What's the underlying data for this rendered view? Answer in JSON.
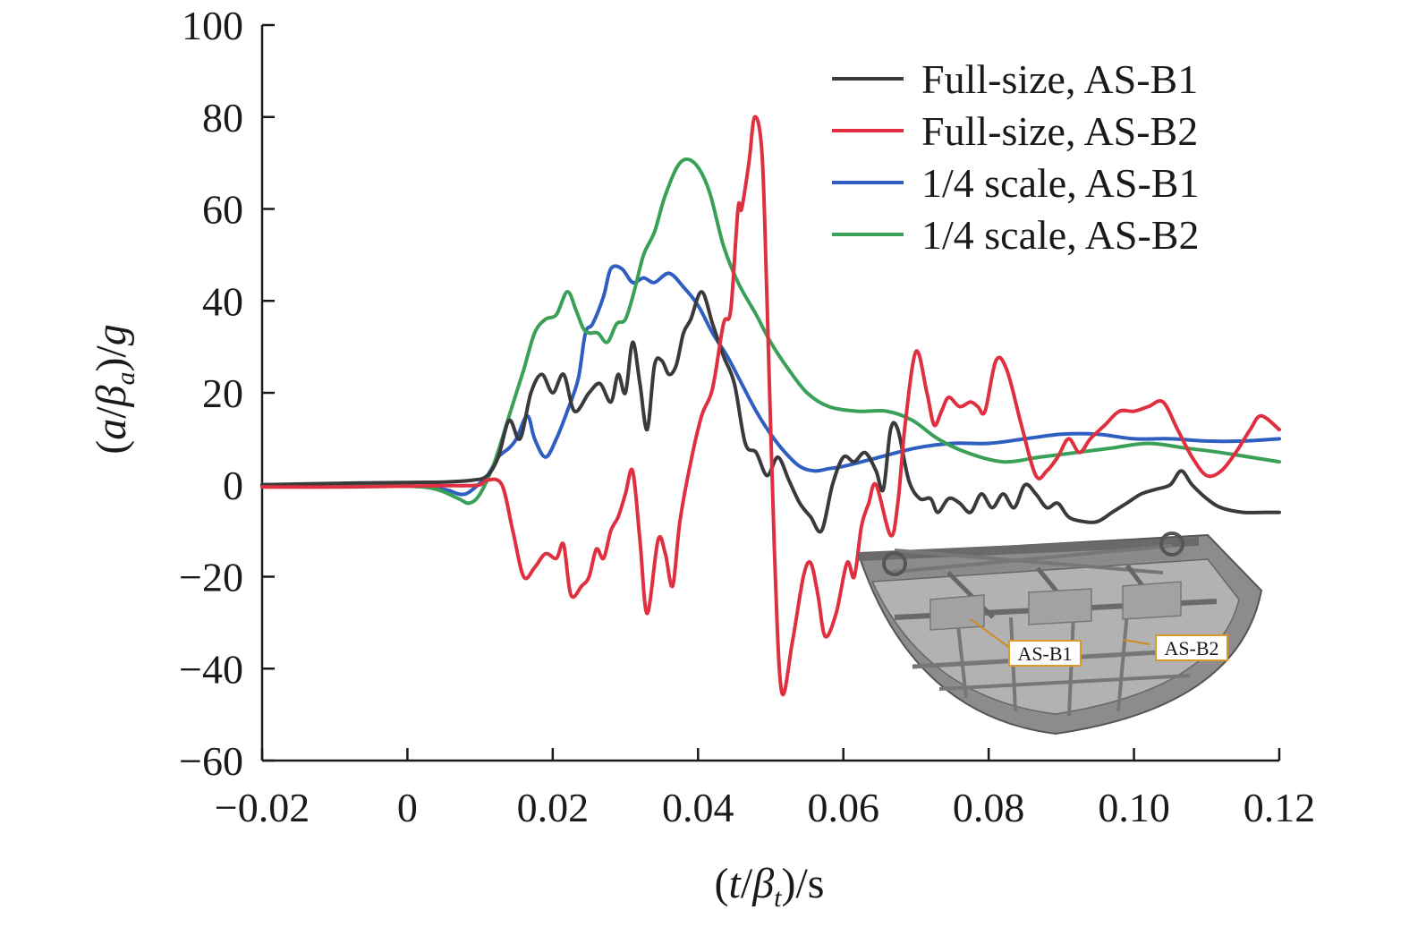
{
  "chart_data": {
    "type": "line",
    "xlabel": {
      "prefix": "(",
      "var": "t",
      "slash": "/",
      "greek": "β",
      "sub": "t",
      "suffix": ")/s"
    },
    "ylabel": {
      "prefix": "(",
      "var": "a",
      "slash": "/",
      "greek": "β",
      "sub": "a",
      "suffix": ")/",
      "unit": "g"
    },
    "xlim": [
      -0.02,
      0.12
    ],
    "ylim": [
      -60,
      100
    ],
    "xticks": [
      -0.02,
      0,
      0.02,
      0.04,
      0.06,
      0.08,
      0.1,
      0.12
    ],
    "xtick_labels": [
      "−0.02",
      "0",
      "0.02",
      "0.04",
      "0.06",
      "0.08",
      "0.10",
      "0.12"
    ],
    "yticks": [
      -60,
      -40,
      -20,
      0,
      20,
      40,
      60,
      80,
      100
    ],
    "ytick_labels": [
      "−60",
      "−40",
      "−20",
      "0",
      "20",
      "40",
      "60",
      "80",
      "100"
    ],
    "legend_position": "top-right",
    "grid": false,
    "series": [
      {
        "name": "Full-size, AS-B1",
        "color": "#3a3a3c",
        "points": [
          [
            -0.02,
            0
          ],
          [
            -0.01,
            0.3
          ],
          [
            0,
            0.5
          ],
          [
            0.005,
            0.6
          ],
          [
            0.009,
            1
          ],
          [
            0.011,
            2
          ],
          [
            0.0125,
            6
          ],
          [
            0.014,
            14
          ],
          [
            0.0155,
            10
          ],
          [
            0.017,
            20
          ],
          [
            0.0185,
            24
          ],
          [
            0.02,
            20
          ],
          [
            0.0215,
            24
          ],
          [
            0.023,
            16
          ],
          [
            0.025,
            20
          ],
          [
            0.0265,
            22
          ],
          [
            0.028,
            18
          ],
          [
            0.029,
            24
          ],
          [
            0.03,
            20
          ],
          [
            0.031,
            31
          ],
          [
            0.032,
            22
          ],
          [
            0.033,
            12
          ],
          [
            0.034,
            26
          ],
          [
            0.035,
            27
          ],
          [
            0.036,
            24
          ],
          [
            0.037,
            26
          ],
          [
            0.038,
            33
          ],
          [
            0.039,
            36
          ],
          [
            0.0405,
            42
          ],
          [
            0.042,
            35
          ],
          [
            0.0435,
            28
          ],
          [
            0.045,
            22
          ],
          [
            0.0465,
            9
          ],
          [
            0.048,
            7
          ],
          [
            0.0495,
            2
          ],
          [
            0.051,
            6
          ],
          [
            0.0525,
            1
          ],
          [
            0.054,
            -4
          ],
          [
            0.0555,
            -7
          ],
          [
            0.057,
            -10
          ],
          [
            0.0585,
            0
          ],
          [
            0.06,
            6
          ],
          [
            0.0615,
            5
          ],
          [
            0.063,
            7
          ],
          [
            0.0645,
            3
          ],
          [
            0.0655,
            -1
          ],
          [
            0.0665,
            12
          ],
          [
            0.0675,
            12
          ],
          [
            0.069,
            1
          ],
          [
            0.0705,
            -3
          ],
          [
            0.072,
            -3
          ],
          [
            0.073,
            -6
          ],
          [
            0.0745,
            -3
          ],
          [
            0.076,
            -4
          ],
          [
            0.0775,
            -6
          ],
          [
            0.079,
            -2
          ],
          [
            0.0805,
            -5
          ],
          [
            0.082,
            -2
          ],
          [
            0.0835,
            -5
          ],
          [
            0.085,
            0
          ],
          [
            0.0865,
            -2
          ],
          [
            0.088,
            -5
          ],
          [
            0.0895,
            -4
          ],
          [
            0.091,
            -7
          ],
          [
            0.093,
            -8
          ],
          [
            0.095,
            -8
          ],
          [
            0.097,
            -6
          ],
          [
            0.099,
            -4
          ],
          [
            0.101,
            -2
          ],
          [
            0.103,
            -1
          ],
          [
            0.105,
            0
          ],
          [
            0.1065,
            3
          ],
          [
            0.108,
            0
          ],
          [
            0.11,
            -3
          ],
          [
            0.112,
            -5
          ],
          [
            0.115,
            -6
          ],
          [
            0.118,
            -6
          ],
          [
            0.12,
            -6
          ]
        ]
      },
      {
        "name": "Full-size, AS-B2",
        "color": "#e03040",
        "points": [
          [
            -0.02,
            -0.5
          ],
          [
            -0.01,
            -0.5
          ],
          [
            0,
            -0.3
          ],
          [
            0.005,
            -0.2
          ],
          [
            0.008,
            -0.2
          ],
          [
            0.01,
            0
          ],
          [
            0.011,
            1
          ],
          [
            0.013,
            0
          ],
          [
            0.0145,
            -10
          ],
          [
            0.016,
            -20
          ],
          [
            0.0175,
            -18
          ],
          [
            0.019,
            -15
          ],
          [
            0.0205,
            -16
          ],
          [
            0.0215,
            -13
          ],
          [
            0.0225,
            -24
          ],
          [
            0.024,
            -22
          ],
          [
            0.025,
            -20
          ],
          [
            0.026,
            -14
          ],
          [
            0.027,
            -16
          ],
          [
            0.028,
            -10
          ],
          [
            0.029,
            -7
          ],
          [
            0.03,
            -2
          ],
          [
            0.031,
            3
          ],
          [
            0.032,
            -12
          ],
          [
            0.033,
            -28
          ],
          [
            0.0345,
            -12
          ],
          [
            0.0355,
            -15
          ],
          [
            0.0365,
            -22
          ],
          [
            0.0375,
            -8
          ],
          [
            0.039,
            5
          ],
          [
            0.0405,
            15
          ],
          [
            0.042,
            21
          ],
          [
            0.0435,
            35
          ],
          [
            0.0445,
            38
          ],
          [
            0.0455,
            60
          ],
          [
            0.046,
            60
          ],
          [
            0.047,
            70
          ],
          [
            0.0478,
            80
          ],
          [
            0.0488,
            72
          ],
          [
            0.0495,
            40
          ],
          [
            0.0505,
            -14
          ],
          [
            0.0515,
            -45
          ],
          [
            0.053,
            -34
          ],
          [
            0.0545,
            -20
          ],
          [
            0.0555,
            -17
          ],
          [
            0.0565,
            -24
          ],
          [
            0.0575,
            -33
          ],
          [
            0.059,
            -28
          ],
          [
            0.0605,
            -17
          ],
          [
            0.0615,
            -20
          ],
          [
            0.0625,
            -9
          ],
          [
            0.0635,
            -4
          ],
          [
            0.0645,
            0
          ],
          [
            0.0665,
            -11
          ],
          [
            0.0675,
            -4
          ],
          [
            0.0685,
            13
          ],
          [
            0.07,
            29
          ],
          [
            0.0715,
            20
          ],
          [
            0.0725,
            13
          ],
          [
            0.0735,
            16
          ],
          [
            0.0745,
            19
          ],
          [
            0.076,
            17
          ],
          [
            0.0775,
            18
          ],
          [
            0.0785,
            17
          ],
          [
            0.0795,
            16
          ],
          [
            0.081,
            27
          ],
          [
            0.0825,
            25
          ],
          [
            0.0845,
            13
          ],
          [
            0.0865,
            2
          ],
          [
            0.088,
            3
          ],
          [
            0.0895,
            6
          ],
          [
            0.091,
            10
          ],
          [
            0.0925,
            7
          ],
          [
            0.094,
            10
          ],
          [
            0.096,
            13
          ],
          [
            0.098,
            16
          ],
          [
            0.1,
            16
          ],
          [
            0.102,
            17
          ],
          [
            0.104,
            18
          ],
          [
            0.106,
            12
          ],
          [
            0.108,
            6
          ],
          [
            0.11,
            2
          ],
          [
            0.112,
            3
          ],
          [
            0.114,
            7
          ],
          [
            0.116,
            12
          ],
          [
            0.1175,
            15
          ],
          [
            0.12,
            12
          ]
        ]
      },
      {
        "name": "1/4 scale, AS-B1",
        "color": "#2e5ec0",
        "points": [
          [
            -0.02,
            0
          ],
          [
            -0.01,
            0
          ],
          [
            0,
            -0.2
          ],
          [
            0.005,
            -1
          ],
          [
            0.007,
            -2
          ],
          [
            0.008,
            -2
          ],
          [
            0.009,
            -1
          ],
          [
            0.011,
            2
          ],
          [
            0.0125,
            6
          ],
          [
            0.014,
            8
          ],
          [
            0.015,
            10
          ],
          [
            0.0165,
            15
          ],
          [
            0.0175,
            10
          ],
          [
            0.019,
            6
          ],
          [
            0.0205,
            10
          ],
          [
            0.022,
            16
          ],
          [
            0.0235,
            23
          ],
          [
            0.0245,
            33
          ],
          [
            0.0255,
            35
          ],
          [
            0.027,
            41
          ],
          [
            0.028,
            47
          ],
          [
            0.0295,
            47
          ],
          [
            0.031,
            44
          ],
          [
            0.0325,
            45
          ],
          [
            0.034,
            44
          ],
          [
            0.036,
            46
          ],
          [
            0.038,
            43
          ],
          [
            0.04,
            39
          ],
          [
            0.042,
            33
          ],
          [
            0.044,
            28
          ],
          [
            0.046,
            22
          ],
          [
            0.048,
            16
          ],
          [
            0.05,
            11
          ],
          [
            0.052,
            7
          ],
          [
            0.054,
            4
          ],
          [
            0.056,
            3
          ],
          [
            0.058,
            3.5
          ],
          [
            0.06,
            4
          ],
          [
            0.065,
            6
          ],
          [
            0.07,
            8
          ],
          [
            0.075,
            9
          ],
          [
            0.08,
            9
          ],
          [
            0.085,
            10
          ],
          [
            0.09,
            11
          ],
          [
            0.095,
            11
          ],
          [
            0.1,
            10
          ],
          [
            0.105,
            10
          ],
          [
            0.11,
            9.5
          ],
          [
            0.115,
            9.5
          ],
          [
            0.12,
            10
          ]
        ]
      },
      {
        "name": "1/4 scale, AS-B2",
        "color": "#3aa057",
        "points": [
          [
            -0.02,
            0
          ],
          [
            -0.01,
            0
          ],
          [
            0,
            -0.3
          ],
          [
            0.004,
            -1
          ],
          [
            0.007,
            -3
          ],
          [
            0.0085,
            -4
          ],
          [
            0.01,
            -2
          ],
          [
            0.012,
            5
          ],
          [
            0.014,
            15
          ],
          [
            0.016,
            25
          ],
          [
            0.0175,
            33
          ],
          [
            0.019,
            36
          ],
          [
            0.0205,
            37
          ],
          [
            0.022,
            42
          ],
          [
            0.0232,
            38
          ],
          [
            0.0242,
            34
          ],
          [
            0.025,
            33
          ],
          [
            0.0262,
            33
          ],
          [
            0.0275,
            31
          ],
          [
            0.0288,
            35
          ],
          [
            0.03,
            36
          ],
          [
            0.0312,
            42
          ],
          [
            0.0325,
            50
          ],
          [
            0.034,
            55
          ],
          [
            0.0355,
            63
          ],
          [
            0.0375,
            70
          ],
          [
            0.0395,
            70
          ],
          [
            0.0415,
            64
          ],
          [
            0.0435,
            52
          ],
          [
            0.0455,
            44
          ],
          [
            0.048,
            37
          ],
          [
            0.05,
            31
          ],
          [
            0.0525,
            25
          ],
          [
            0.055,
            20
          ],
          [
            0.058,
            17
          ],
          [
            0.062,
            16
          ],
          [
            0.066,
            16
          ],
          [
            0.0695,
            14
          ],
          [
            0.073,
            10
          ],
          [
            0.077,
            7
          ],
          [
            0.082,
            5
          ],
          [
            0.087,
            6
          ],
          [
            0.092,
            7
          ],
          [
            0.097,
            8
          ],
          [
            0.102,
            9
          ],
          [
            0.107,
            8
          ],
          [
            0.112,
            7
          ],
          [
            0.12,
            5
          ]
        ]
      }
    ],
    "inset": {
      "labels": [
        "AS-B1",
        "AS-B2"
      ]
    }
  }
}
